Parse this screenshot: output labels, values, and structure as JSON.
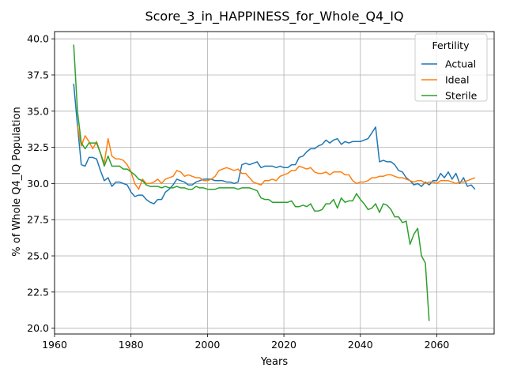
{
  "chart_data": {
    "type": "line",
    "title": "Score_3_in_HAPPINESS_for_Whole_Q4_IQ",
    "xlabel": "Years",
    "ylabel": "% of Whole Q4_IQ Population",
    "xlim": [
      1960,
      2075
    ],
    "ylim": [
      19.6,
      40.5
    ],
    "x_ticks": [
      1960,
      1980,
      2000,
      2020,
      2040,
      2060
    ],
    "x_tick_labels": [
      "1960",
      "1980",
      "2000",
      "2020",
      "2040",
      "2060"
    ],
    "y_ticks": [
      20.0,
      22.5,
      25.0,
      27.5,
      30.0,
      32.5,
      35.0,
      37.5,
      40.0
    ],
    "y_tick_labels": [
      "20.0",
      "22.5",
      "25.0",
      "27.5",
      "30.0",
      "32.5",
      "35.0",
      "37.5",
      "40.0"
    ],
    "grid": true,
    "legend": {
      "title": "Fertility",
      "placement": "top-right"
    },
    "series": [
      {
        "name": "Actual",
        "color": "#1f77b4",
        "points": [
          [
            1965,
            36.9
          ],
          [
            1966,
            34.0
          ],
          [
            1967,
            31.3
          ],
          [
            1968,
            31.2
          ],
          [
            1969,
            31.8
          ],
          [
            1970,
            31.8
          ],
          [
            1971,
            31.7
          ],
          [
            1972,
            30.9
          ],
          [
            1973,
            30.2
          ],
          [
            1974,
            30.4
          ],
          [
            1975,
            29.8
          ],
          [
            1976,
            30.1
          ],
          [
            1977,
            30.1
          ],
          [
            1978,
            30.0
          ],
          [
            1979,
            29.9
          ],
          [
            1980,
            29.4
          ],
          [
            1981,
            29.1
          ],
          [
            1982,
            29.2
          ],
          [
            1983,
            29.2
          ],
          [
            1984,
            28.9
          ],
          [
            1985,
            28.7
          ],
          [
            1986,
            28.6
          ],
          [
            1987,
            28.9
          ],
          [
            1988,
            28.9
          ],
          [
            1989,
            29.4
          ],
          [
            1990,
            29.6
          ],
          [
            1991,
            29.9
          ],
          [
            1992,
            30.3
          ],
          [
            1993,
            30.2
          ],
          [
            1994,
            30.1
          ],
          [
            1995,
            29.9
          ],
          [
            1996,
            29.9
          ],
          [
            1997,
            30.1
          ],
          [
            1998,
            30.2
          ],
          [
            1999,
            30.3
          ],
          [
            2000,
            30.3
          ],
          [
            2001,
            30.3
          ],
          [
            2002,
            30.2
          ],
          [
            2003,
            30.2
          ],
          [
            2004,
            30.2
          ],
          [
            2005,
            30.1
          ],
          [
            2006,
            30.1
          ],
          [
            2007,
            30.0
          ],
          [
            2008,
            30.1
          ],
          [
            2009,
            31.3
          ],
          [
            2010,
            31.4
          ],
          [
            2011,
            31.3
          ],
          [
            2012,
            31.4
          ],
          [
            2013,
            31.5
          ],
          [
            2014,
            31.1
          ],
          [
            2015,
            31.2
          ],
          [
            2016,
            31.2
          ],
          [
            2017,
            31.2
          ],
          [
            2018,
            31.1
          ],
          [
            2019,
            31.2
          ],
          [
            2020,
            31.1
          ],
          [
            2021,
            31.1
          ],
          [
            2022,
            31.3
          ],
          [
            2023,
            31.3
          ],
          [
            2024,
            31.8
          ],
          [
            2025,
            31.9
          ],
          [
            2026,
            32.2
          ],
          [
            2027,
            32.4
          ],
          [
            2028,
            32.4
          ],
          [
            2029,
            32.6
          ],
          [
            2030,
            32.7
          ],
          [
            2031,
            33.0
          ],
          [
            2032,
            32.8
          ],
          [
            2033,
            33.0
          ],
          [
            2034,
            33.1
          ],
          [
            2035,
            32.7
          ],
          [
            2036,
            32.9
          ],
          [
            2037,
            32.8
          ],
          [
            2038,
            32.9
          ],
          [
            2039,
            32.9
          ],
          [
            2040,
            32.9
          ],
          [
            2041,
            33.0
          ],
          [
            2042,
            33.1
          ],
          [
            2043,
            33.5
          ],
          [
            2044,
            33.9
          ],
          [
            2045,
            31.5
          ],
          [
            2046,
            31.6
          ],
          [
            2047,
            31.5
          ],
          [
            2048,
            31.5
          ],
          [
            2049,
            31.3
          ],
          [
            2050,
            30.9
          ],
          [
            2051,
            30.8
          ],
          [
            2052,
            30.4
          ],
          [
            2053,
            30.2
          ],
          [
            2054,
            29.9
          ],
          [
            2055,
            30.0
          ],
          [
            2056,
            29.8
          ],
          [
            2057,
            30.1
          ],
          [
            2058,
            29.9
          ],
          [
            2059,
            30.2
          ],
          [
            2060,
            30.2
          ],
          [
            2061,
            30.7
          ],
          [
            2062,
            30.4
          ],
          [
            2063,
            30.8
          ],
          [
            2064,
            30.3
          ],
          [
            2065,
            30.7
          ],
          [
            2066,
            30.0
          ],
          [
            2067,
            30.4
          ],
          [
            2068,
            29.8
          ],
          [
            2069,
            29.9
          ],
          [
            2070,
            29.6
          ]
        ]
      },
      {
        "name": "Ideal",
        "color": "#ff7f0e",
        "points": [
          [
            1966,
            34.0
          ],
          [
            1967,
            32.6
          ],
          [
            1968,
            33.3
          ],
          [
            1969,
            32.9
          ],
          [
            1970,
            32.4
          ],
          [
            1971,
            32.9
          ],
          [
            1972,
            32.1
          ],
          [
            1973,
            31.4
          ],
          [
            1974,
            33.1
          ],
          [
            1975,
            31.9
          ],
          [
            1976,
            31.7
          ],
          [
            1977,
            31.7
          ],
          [
            1978,
            31.6
          ],
          [
            1979,
            31.3
          ],
          [
            1980,
            30.8
          ],
          [
            1981,
            30.0
          ],
          [
            1982,
            29.6
          ],
          [
            1983,
            30.3
          ],
          [
            1984,
            30.0
          ],
          [
            1985,
            30.0
          ],
          [
            1986,
            30.1
          ],
          [
            1987,
            30.3
          ],
          [
            1988,
            30.0
          ],
          [
            1989,
            30.3
          ],
          [
            1990,
            30.4
          ],
          [
            1991,
            30.5
          ],
          [
            1992,
            30.9
          ],
          [
            1993,
            30.8
          ],
          [
            1994,
            30.5
          ],
          [
            1995,
            30.6
          ],
          [
            1996,
            30.5
          ],
          [
            1997,
            30.4
          ],
          [
            1998,
            30.4
          ],
          [
            1999,
            30.2
          ],
          [
            2000,
            30.2
          ],
          [
            2001,
            30.3
          ],
          [
            2002,
            30.5
          ],
          [
            2003,
            30.9
          ],
          [
            2004,
            31.0
          ],
          [
            2005,
            31.1
          ],
          [
            2006,
            31.0
          ],
          [
            2007,
            30.9
          ],
          [
            2008,
            31.0
          ],
          [
            2009,
            30.7
          ],
          [
            2010,
            30.7
          ],
          [
            2011,
            30.4
          ],
          [
            2012,
            30.1
          ],
          [
            2013,
            30.0
          ],
          [
            2014,
            29.9
          ],
          [
            2015,
            30.2
          ],
          [
            2016,
            30.2
          ],
          [
            2017,
            30.3
          ],
          [
            2018,
            30.2
          ],
          [
            2019,
            30.5
          ],
          [
            2020,
            30.6
          ],
          [
            2021,
            30.7
          ],
          [
            2022,
            30.9
          ],
          [
            2023,
            30.9
          ],
          [
            2024,
            31.2
          ],
          [
            2025,
            31.1
          ],
          [
            2026,
            31.0
          ],
          [
            2027,
            31.1
          ],
          [
            2028,
            30.8
          ],
          [
            2029,
            30.7
          ],
          [
            2030,
            30.7
          ],
          [
            2031,
            30.8
          ],
          [
            2032,
            30.6
          ],
          [
            2033,
            30.8
          ],
          [
            2034,
            30.8
          ],
          [
            2035,
            30.8
          ],
          [
            2036,
            30.6
          ],
          [
            2037,
            30.6
          ],
          [
            2038,
            30.2
          ],
          [
            2039,
            30.0
          ],
          [
            2040,
            30.1
          ],
          [
            2041,
            30.1
          ],
          [
            2042,
            30.2
          ],
          [
            2043,
            30.4
          ],
          [
            2044,
            30.4
          ],
          [
            2045,
            30.5
          ],
          [
            2046,
            30.5
          ],
          [
            2047,
            30.6
          ],
          [
            2048,
            30.6
          ],
          [
            2049,
            30.5
          ],
          [
            2050,
            30.4
          ],
          [
            2051,
            30.4
          ],
          [
            2052,
            30.3
          ],
          [
            2053,
            30.2
          ],
          [
            2054,
            30.1
          ],
          [
            2055,
            30.2
          ],
          [
            2056,
            30.2
          ],
          [
            2057,
            30.0
          ],
          [
            2058,
            30.1
          ],
          [
            2059,
            30.1
          ],
          [
            2060,
            30.0
          ],
          [
            2061,
            30.2
          ],
          [
            2062,
            30.2
          ],
          [
            2063,
            30.2
          ],
          [
            2064,
            30.1
          ],
          [
            2065,
            30.0
          ],
          [
            2066,
            30.1
          ],
          [
            2067,
            30.1
          ],
          [
            2068,
            30.2
          ],
          [
            2069,
            30.3
          ],
          [
            2070,
            30.4
          ]
        ]
      },
      {
        "name": "Sterile",
        "color": "#2ca02c",
        "points": [
          [
            1965,
            39.6
          ],
          [
            1966,
            35.0
          ],
          [
            1967,
            32.8
          ],
          [
            1968,
            32.4
          ],
          [
            1969,
            32.8
          ],
          [
            1970,
            32.8
          ],
          [
            1971,
            32.8
          ],
          [
            1972,
            32.1
          ],
          [
            1973,
            31.2
          ],
          [
            1974,
            31.9
          ],
          [
            1975,
            31.2
          ],
          [
            1976,
            31.2
          ],
          [
            1977,
            31.2
          ],
          [
            1978,
            31.0
          ],
          [
            1979,
            31.0
          ],
          [
            1980,
            30.8
          ],
          [
            1981,
            30.6
          ],
          [
            1982,
            30.3
          ],
          [
            1983,
            30.2
          ],
          [
            1984,
            29.9
          ],
          [
            1985,
            29.8
          ],
          [
            1986,
            29.8
          ],
          [
            1987,
            29.8
          ],
          [
            1988,
            29.7
          ],
          [
            1989,
            29.8
          ],
          [
            1990,
            29.7
          ],
          [
            1991,
            29.7
          ],
          [
            1992,
            29.8
          ],
          [
            1993,
            29.7
          ],
          [
            1994,
            29.7
          ],
          [
            1995,
            29.6
          ],
          [
            1996,
            29.6
          ],
          [
            1997,
            29.8
          ],
          [
            1998,
            29.7
          ],
          [
            1999,
            29.7
          ],
          [
            2000,
            29.6
          ],
          [
            2001,
            29.6
          ],
          [
            2002,
            29.6
          ],
          [
            2003,
            29.7
          ],
          [
            2004,
            29.7
          ],
          [
            2005,
            29.7
          ],
          [
            2006,
            29.7
          ],
          [
            2007,
            29.7
          ],
          [
            2008,
            29.6
          ],
          [
            2009,
            29.7
          ],
          [
            2010,
            29.7
          ],
          [
            2011,
            29.7
          ],
          [
            2012,
            29.6
          ],
          [
            2013,
            29.5
          ],
          [
            2014,
            29.0
          ],
          [
            2015,
            28.9
          ],
          [
            2016,
            28.9
          ],
          [
            2017,
            28.7
          ],
          [
            2018,
            28.7
          ],
          [
            2019,
            28.7
          ],
          [
            2020,
            28.7
          ],
          [
            2021,
            28.7
          ],
          [
            2022,
            28.8
          ],
          [
            2023,
            28.4
          ],
          [
            2024,
            28.4
          ],
          [
            2025,
            28.5
          ],
          [
            2026,
            28.4
          ],
          [
            2027,
            28.6
          ],
          [
            2028,
            28.1
          ],
          [
            2029,
            28.1
          ],
          [
            2030,
            28.2
          ],
          [
            2031,
            28.6
          ],
          [
            2032,
            28.6
          ],
          [
            2033,
            28.9
          ],
          [
            2034,
            28.3
          ],
          [
            2035,
            29.0
          ],
          [
            2036,
            28.7
          ],
          [
            2037,
            28.8
          ],
          [
            2038,
            28.8
          ],
          [
            2039,
            29.3
          ],
          [
            2040,
            28.9
          ],
          [
            2041,
            28.6
          ],
          [
            2042,
            28.2
          ],
          [
            2043,
            28.3
          ],
          [
            2044,
            28.6
          ],
          [
            2045,
            28.0
          ],
          [
            2046,
            28.6
          ],
          [
            2047,
            28.5
          ],
          [
            2048,
            28.2
          ],
          [
            2049,
            27.7
          ],
          [
            2050,
            27.7
          ],
          [
            2051,
            27.3
          ],
          [
            2052,
            27.4
          ],
          [
            2053,
            25.8
          ],
          [
            2054,
            26.5
          ],
          [
            2055,
            26.9
          ],
          [
            2056,
            25.0
          ],
          [
            2057,
            24.5
          ],
          [
            2058,
            20.5
          ]
        ]
      }
    ]
  }
}
